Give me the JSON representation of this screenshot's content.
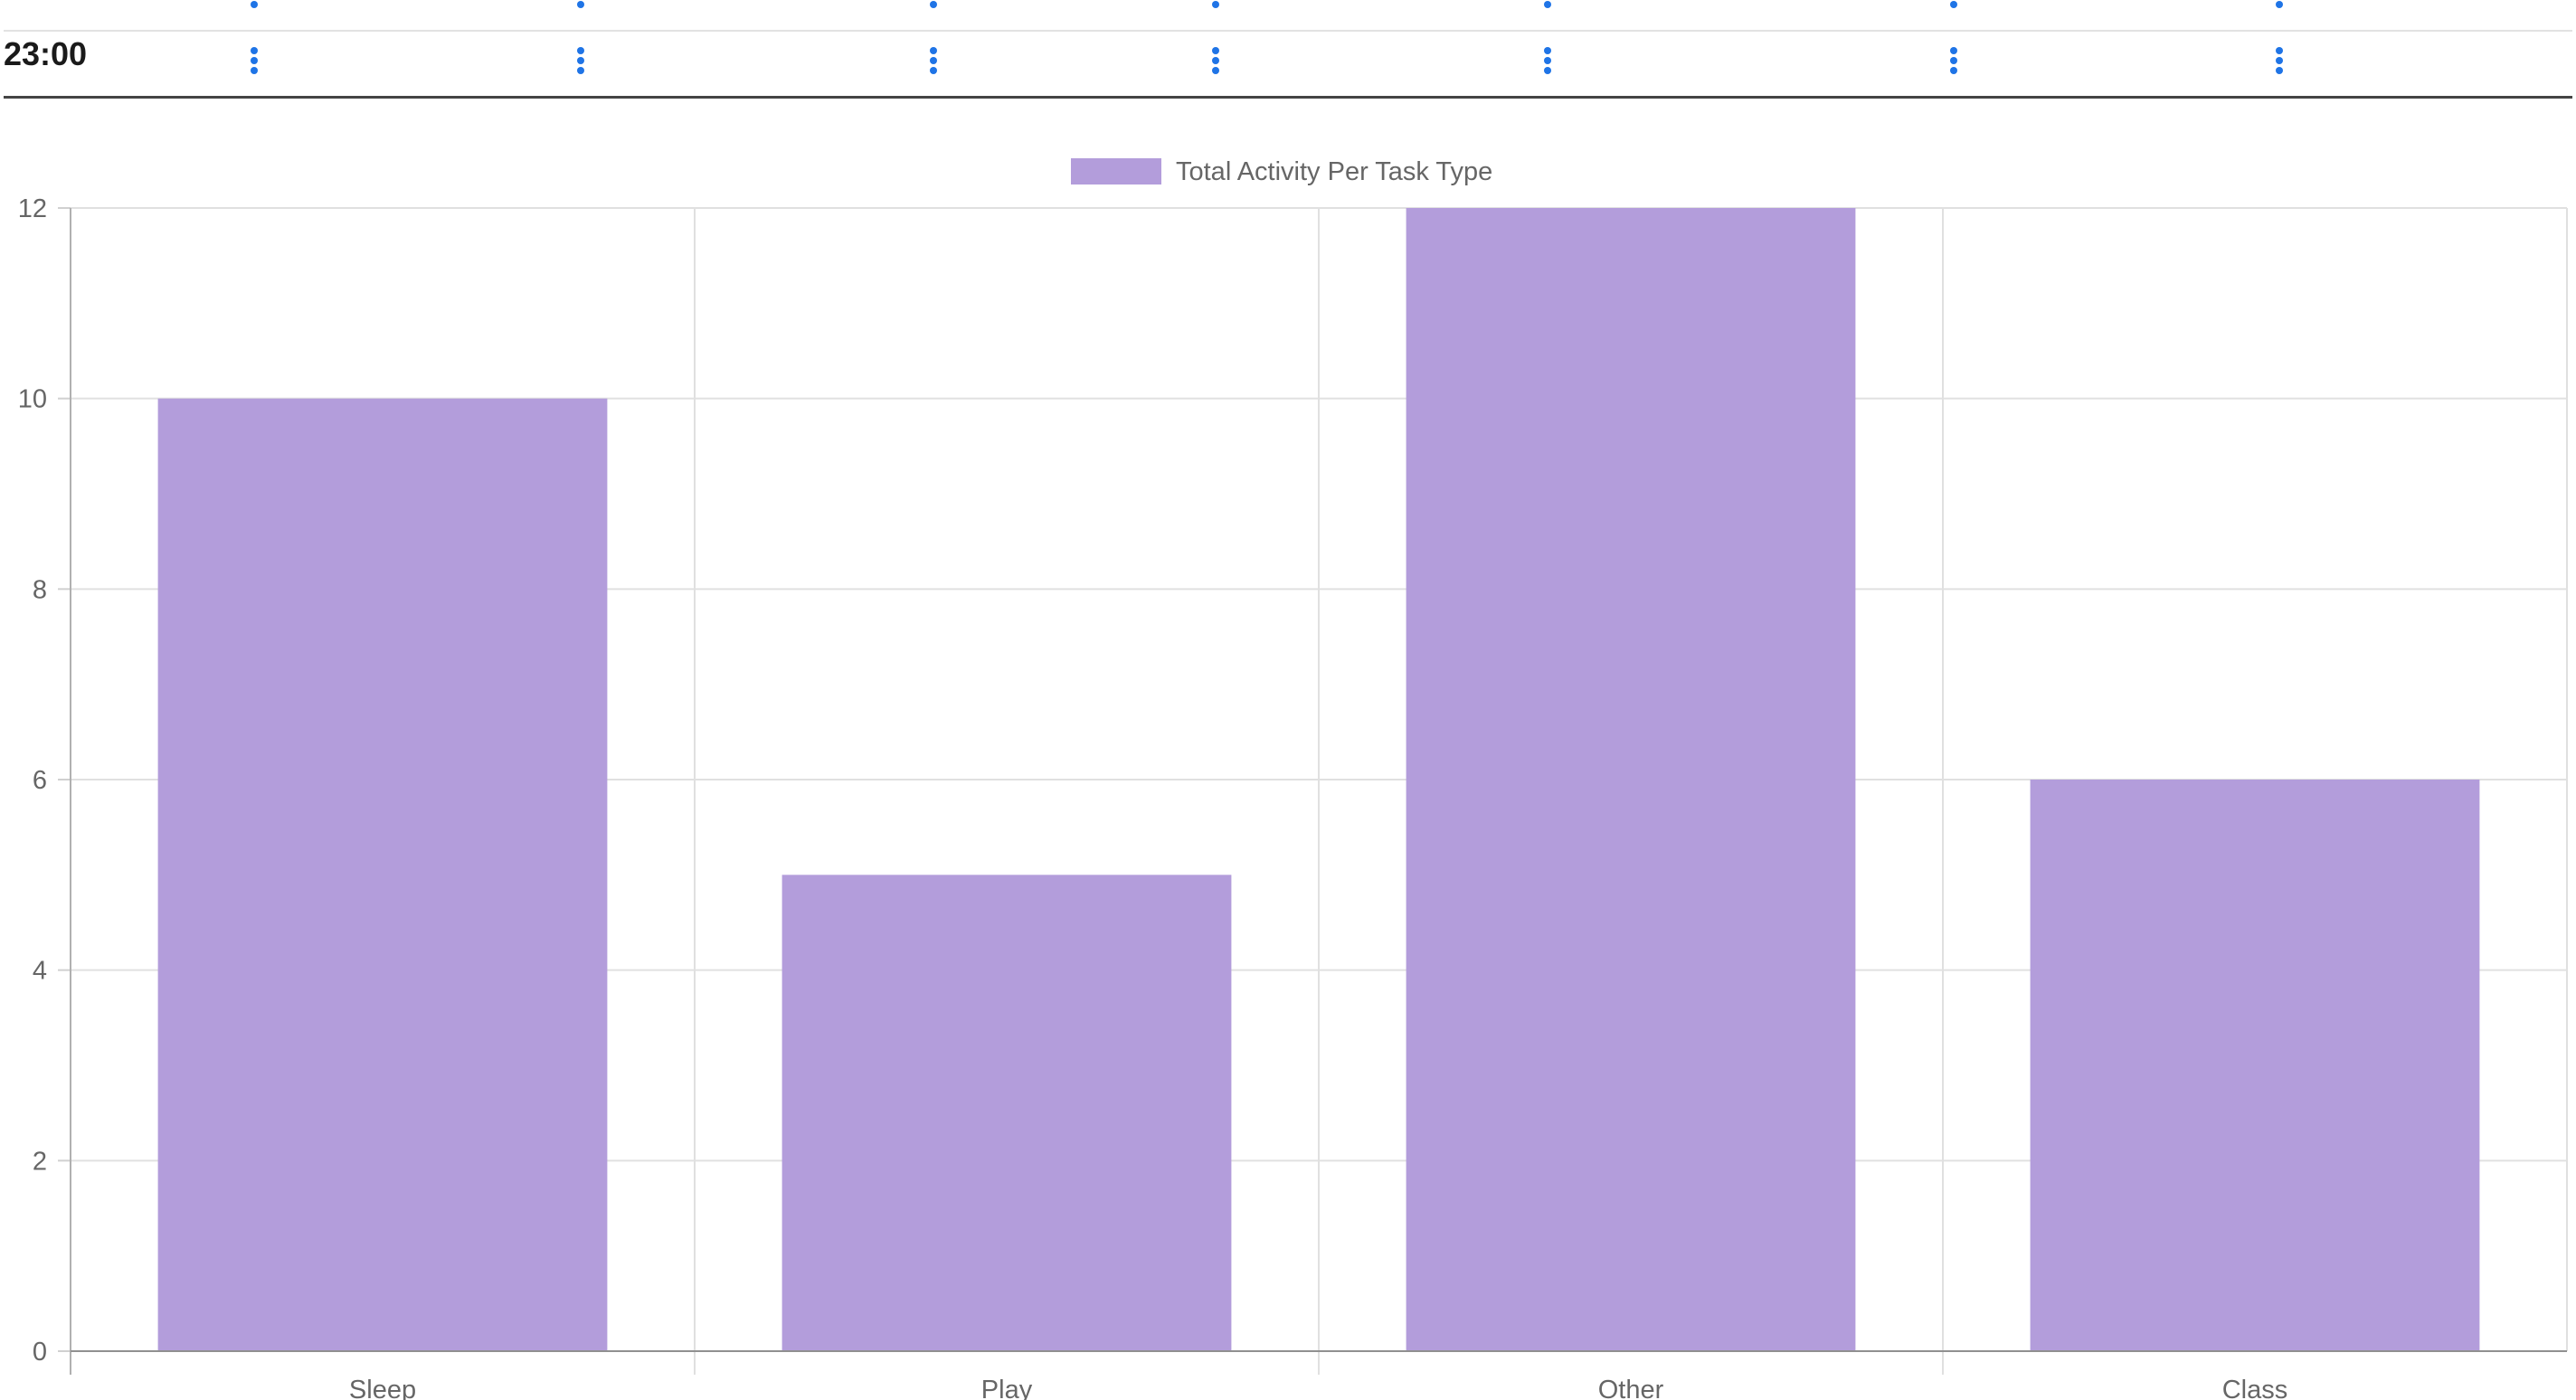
{
  "schedule": {
    "time_label": "23:00",
    "menu_icon": "kebab-menu-icon",
    "menu_color": "#1f74e6"
  },
  "chart_data": {
    "type": "bar",
    "categories": [
      "Sleep",
      "Play",
      "Other",
      "Class"
    ],
    "series": [
      {
        "name": "Total Activity Per Task Type",
        "values": [
          10,
          5,
          12,
          6
        ],
        "color": "#b39ddb"
      }
    ],
    "title": "",
    "xlabel": "",
    "ylabel": "",
    "ylim": [
      0,
      12
    ],
    "yticks": [
      "0",
      "2",
      "4",
      "6",
      "8",
      "10",
      "12"
    ],
    "grid": true,
    "legend": "top-center"
  }
}
